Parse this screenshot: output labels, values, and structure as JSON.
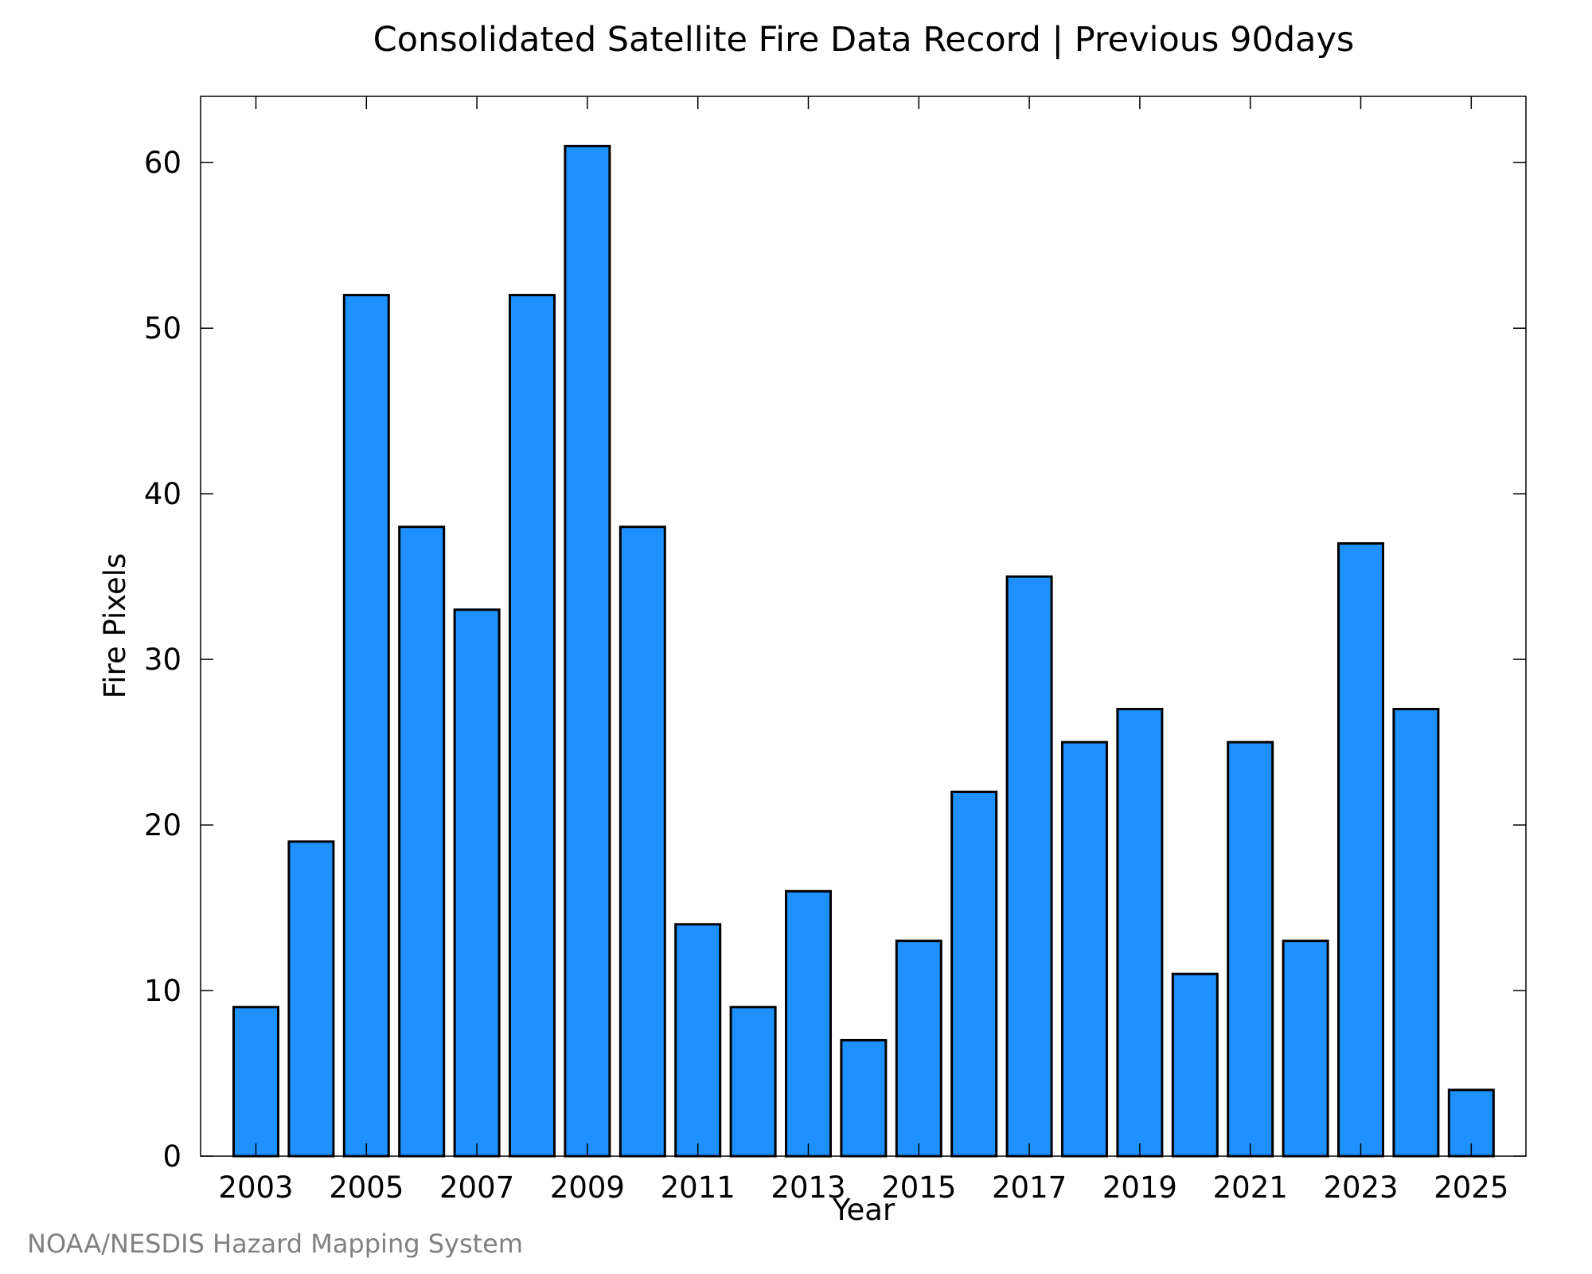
{
  "chart_data": {
    "type": "bar",
    "title": "Consolidated Satellite Fire Data Record | Previous 90days",
    "xlabel": "Year",
    "ylabel": "Fire Pixels",
    "categories": [
      "2003",
      "2004",
      "2005",
      "2006",
      "2007",
      "2008",
      "2009",
      "2010",
      "2011",
      "2012",
      "2013",
      "2014",
      "2015",
      "2016",
      "2017",
      "2018",
      "2019",
      "2020",
      "2021",
      "2022",
      "2023",
      "2024",
      "2025"
    ],
    "values": [
      9,
      19,
      52,
      38,
      33,
      52,
      61,
      38,
      14,
      9,
      16,
      7,
      13,
      22,
      35,
      25,
      27,
      11,
      25,
      13,
      37,
      27,
      4
    ],
    "x_tick_labels": [
      "2003",
      "2005",
      "2007",
      "2009",
      "2011",
      "2013",
      "2015",
      "2017",
      "2019",
      "2021",
      "2023",
      "2025"
    ],
    "y_tick_labels": [
      "0",
      "10",
      "20",
      "30",
      "40",
      "50",
      "60"
    ],
    "ylim": [
      0,
      64
    ],
    "grid": false,
    "legend": "none",
    "bar_color": "#1e90ff",
    "edge_color": "#000000"
  },
  "footer": {
    "credit": "NOAA/NESDIS Hazard Mapping System"
  }
}
